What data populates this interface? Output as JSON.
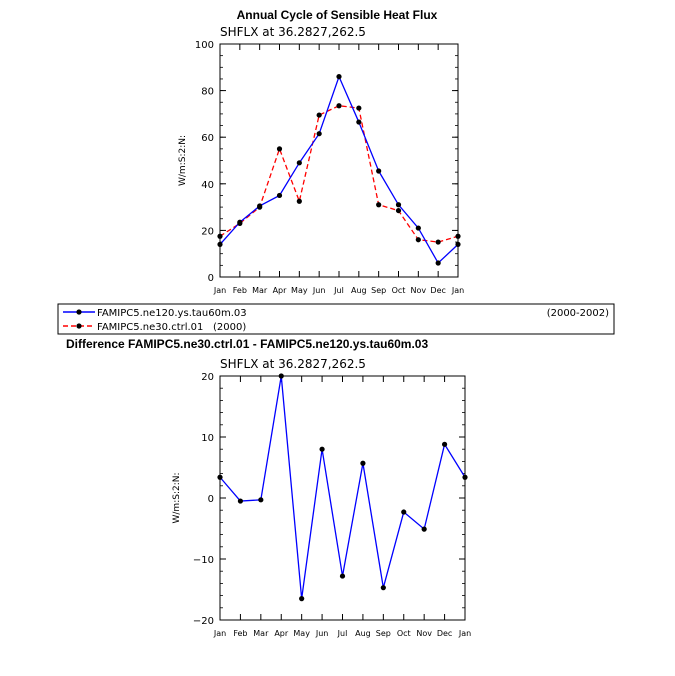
{
  "chart_data": [
    {
      "type": "line",
      "title": "Annual Cycle of Sensible Heat Flux",
      "subtitle": "SHFLX at 36.2827,262.5",
      "ylabel": "W/m:S:2:N:",
      "xlabel": "",
      "categories": [
        "Jan",
        "Feb",
        "Mar",
        "Apr",
        "May",
        "Jun",
        "Jul",
        "Aug",
        "Sep",
        "Oct",
        "Nov",
        "Dec",
        "Jan"
      ],
      "ylim": [
        0,
        100
      ],
      "yticks": [
        "0",
        "20",
        "40",
        "60",
        "80",
        "100"
      ],
      "series": [
        {
          "name": "FAMIPC5.ne120.ys.tau60m.03",
          "period": "(2000-2002)",
          "color": "#0000ff",
          "dash": "solid",
          "values": [
            14.0,
            23.5,
            30.5,
            35.0,
            49.0,
            61.5,
            86.0,
            66.5,
            45.5,
            31.0,
            21.0,
            6.0,
            14.0
          ]
        },
        {
          "name": "FAMIPC5.ne30.ctrl.01",
          "period": "(2000)",
          "color": "#ff0000",
          "dash": "dashed",
          "values": [
            17.5,
            23.0,
            30.0,
            55.0,
            32.5,
            69.5,
            73.5,
            72.5,
            31.0,
            28.5,
            16.0,
            15.0,
            17.5
          ]
        }
      ]
    },
    {
      "type": "line",
      "title": "Difference FAMIPC5.ne30.ctrl.01 - FAMIPC5.ne120.ys.tau60m.03",
      "subtitle": "SHFLX at 36.2827,262.5",
      "ylabel": "W/m:S:2:N:",
      "xlabel": "",
      "categories": [
        "Jan",
        "Feb",
        "Mar",
        "Apr",
        "May",
        "Jun",
        "Jul",
        "Aug",
        "Sep",
        "Oct",
        "Nov",
        "Dec",
        "Jan"
      ],
      "ylim": [
        -20,
        20
      ],
      "yticks": [
        "−20",
        "−10",
        "0",
        "10",
        "20"
      ],
      "series": [
        {
          "name": "Difference",
          "color": "#0000ff",
          "dash": "solid",
          "values": [
            3.4,
            -0.5,
            -0.3,
            20.0,
            -16.5,
            8.0,
            -12.8,
            5.7,
            -14.7,
            -2.3,
            -5.1,
            8.8,
            3.4
          ]
        }
      ]
    }
  ]
}
